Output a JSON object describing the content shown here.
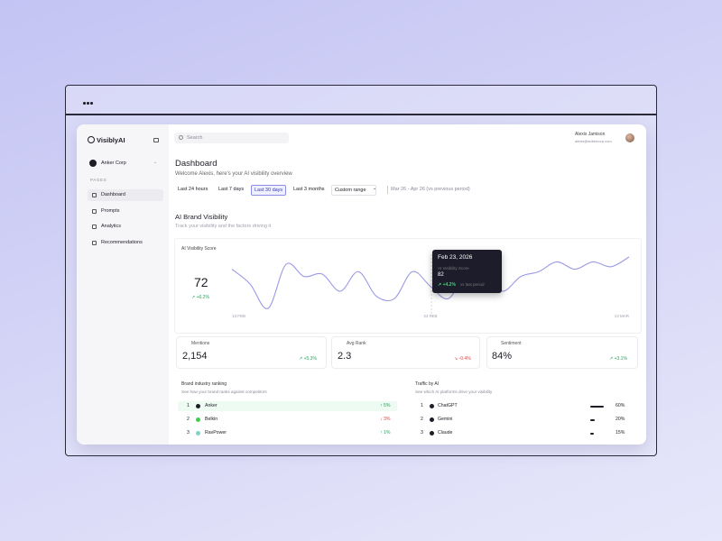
{
  "sidebar": {
    "brand": "VisiblyAI",
    "workspace": "Anker Corp",
    "section": "PAGES",
    "nav": [
      "Dashboard",
      "Prompts",
      "Analytics",
      "Recommendations"
    ]
  },
  "header": {
    "search": "Search",
    "user_name": "Alexis Jamison",
    "user_email": "alexis@ankercorp.com"
  },
  "page": {
    "title": "Dashboard",
    "subtitle": "Welcome Alexis, here's your AI visibility overview",
    "filters": [
      "Last 24 hours",
      "Last 7 days",
      "Last 30 days",
      "Last 3 months"
    ],
    "custom_range": "Custom range",
    "date_range": "Mar 26 - Apr 26 (vs previous period)"
  },
  "visibility": {
    "title": "AI Brand Visibility",
    "subtitle": "Track your visibility and the factors driving it",
    "score_label": "AI Visibility Score",
    "score": 72,
    "score_change": "↗ +6.2%",
    "chart": {
      "x_labels": [
        "13 FEB",
        "23 FEB",
        "13 MAR"
      ],
      "values": [
        78,
        72,
        62,
        80,
        75,
        76,
        69,
        77,
        67,
        66,
        77,
        71,
        66,
        77,
        75,
        69,
        75,
        77,
        81,
        78,
        81,
        79,
        83
      ]
    },
    "tooltip": {
      "date": "Feb 23, 2026",
      "label": "AI Visibility Score",
      "value": 82,
      "change": "↗ +4.2%",
      "change_note": "vs last period"
    }
  },
  "stats": [
    {
      "label": "Mentions",
      "value": "2,154",
      "change": "↗ +5.3%"
    },
    {
      "label": "Avg Rank",
      "value": "2.3",
      "change": "↘ -0.4%"
    },
    {
      "label": "Sentiment",
      "value": "84%",
      "change": "↗ +3.1%"
    }
  ],
  "ranking": {
    "title": "Brand industry ranking",
    "subtitle": "See how your brand ranks against competitors",
    "rows": [
      {
        "rank": 1,
        "brand": "Anker",
        "change": "↑ 5%"
      },
      {
        "rank": 2,
        "brand": "Belkin",
        "change": "↓ 3%"
      },
      {
        "rank": 3,
        "brand": "RavPower",
        "change": "↑ 1%"
      }
    ]
  },
  "traffic": {
    "title": "Traffic by AI",
    "subtitle": "See which AI platforms drive your visibility",
    "platforms": [
      "ChatGPT",
      "Gemini",
      "Claude"
    ],
    "values": [
      60,
      20,
      15
    ],
    "value_labels": [
      "60%",
      "20%",
      "15%"
    ]
  }
}
